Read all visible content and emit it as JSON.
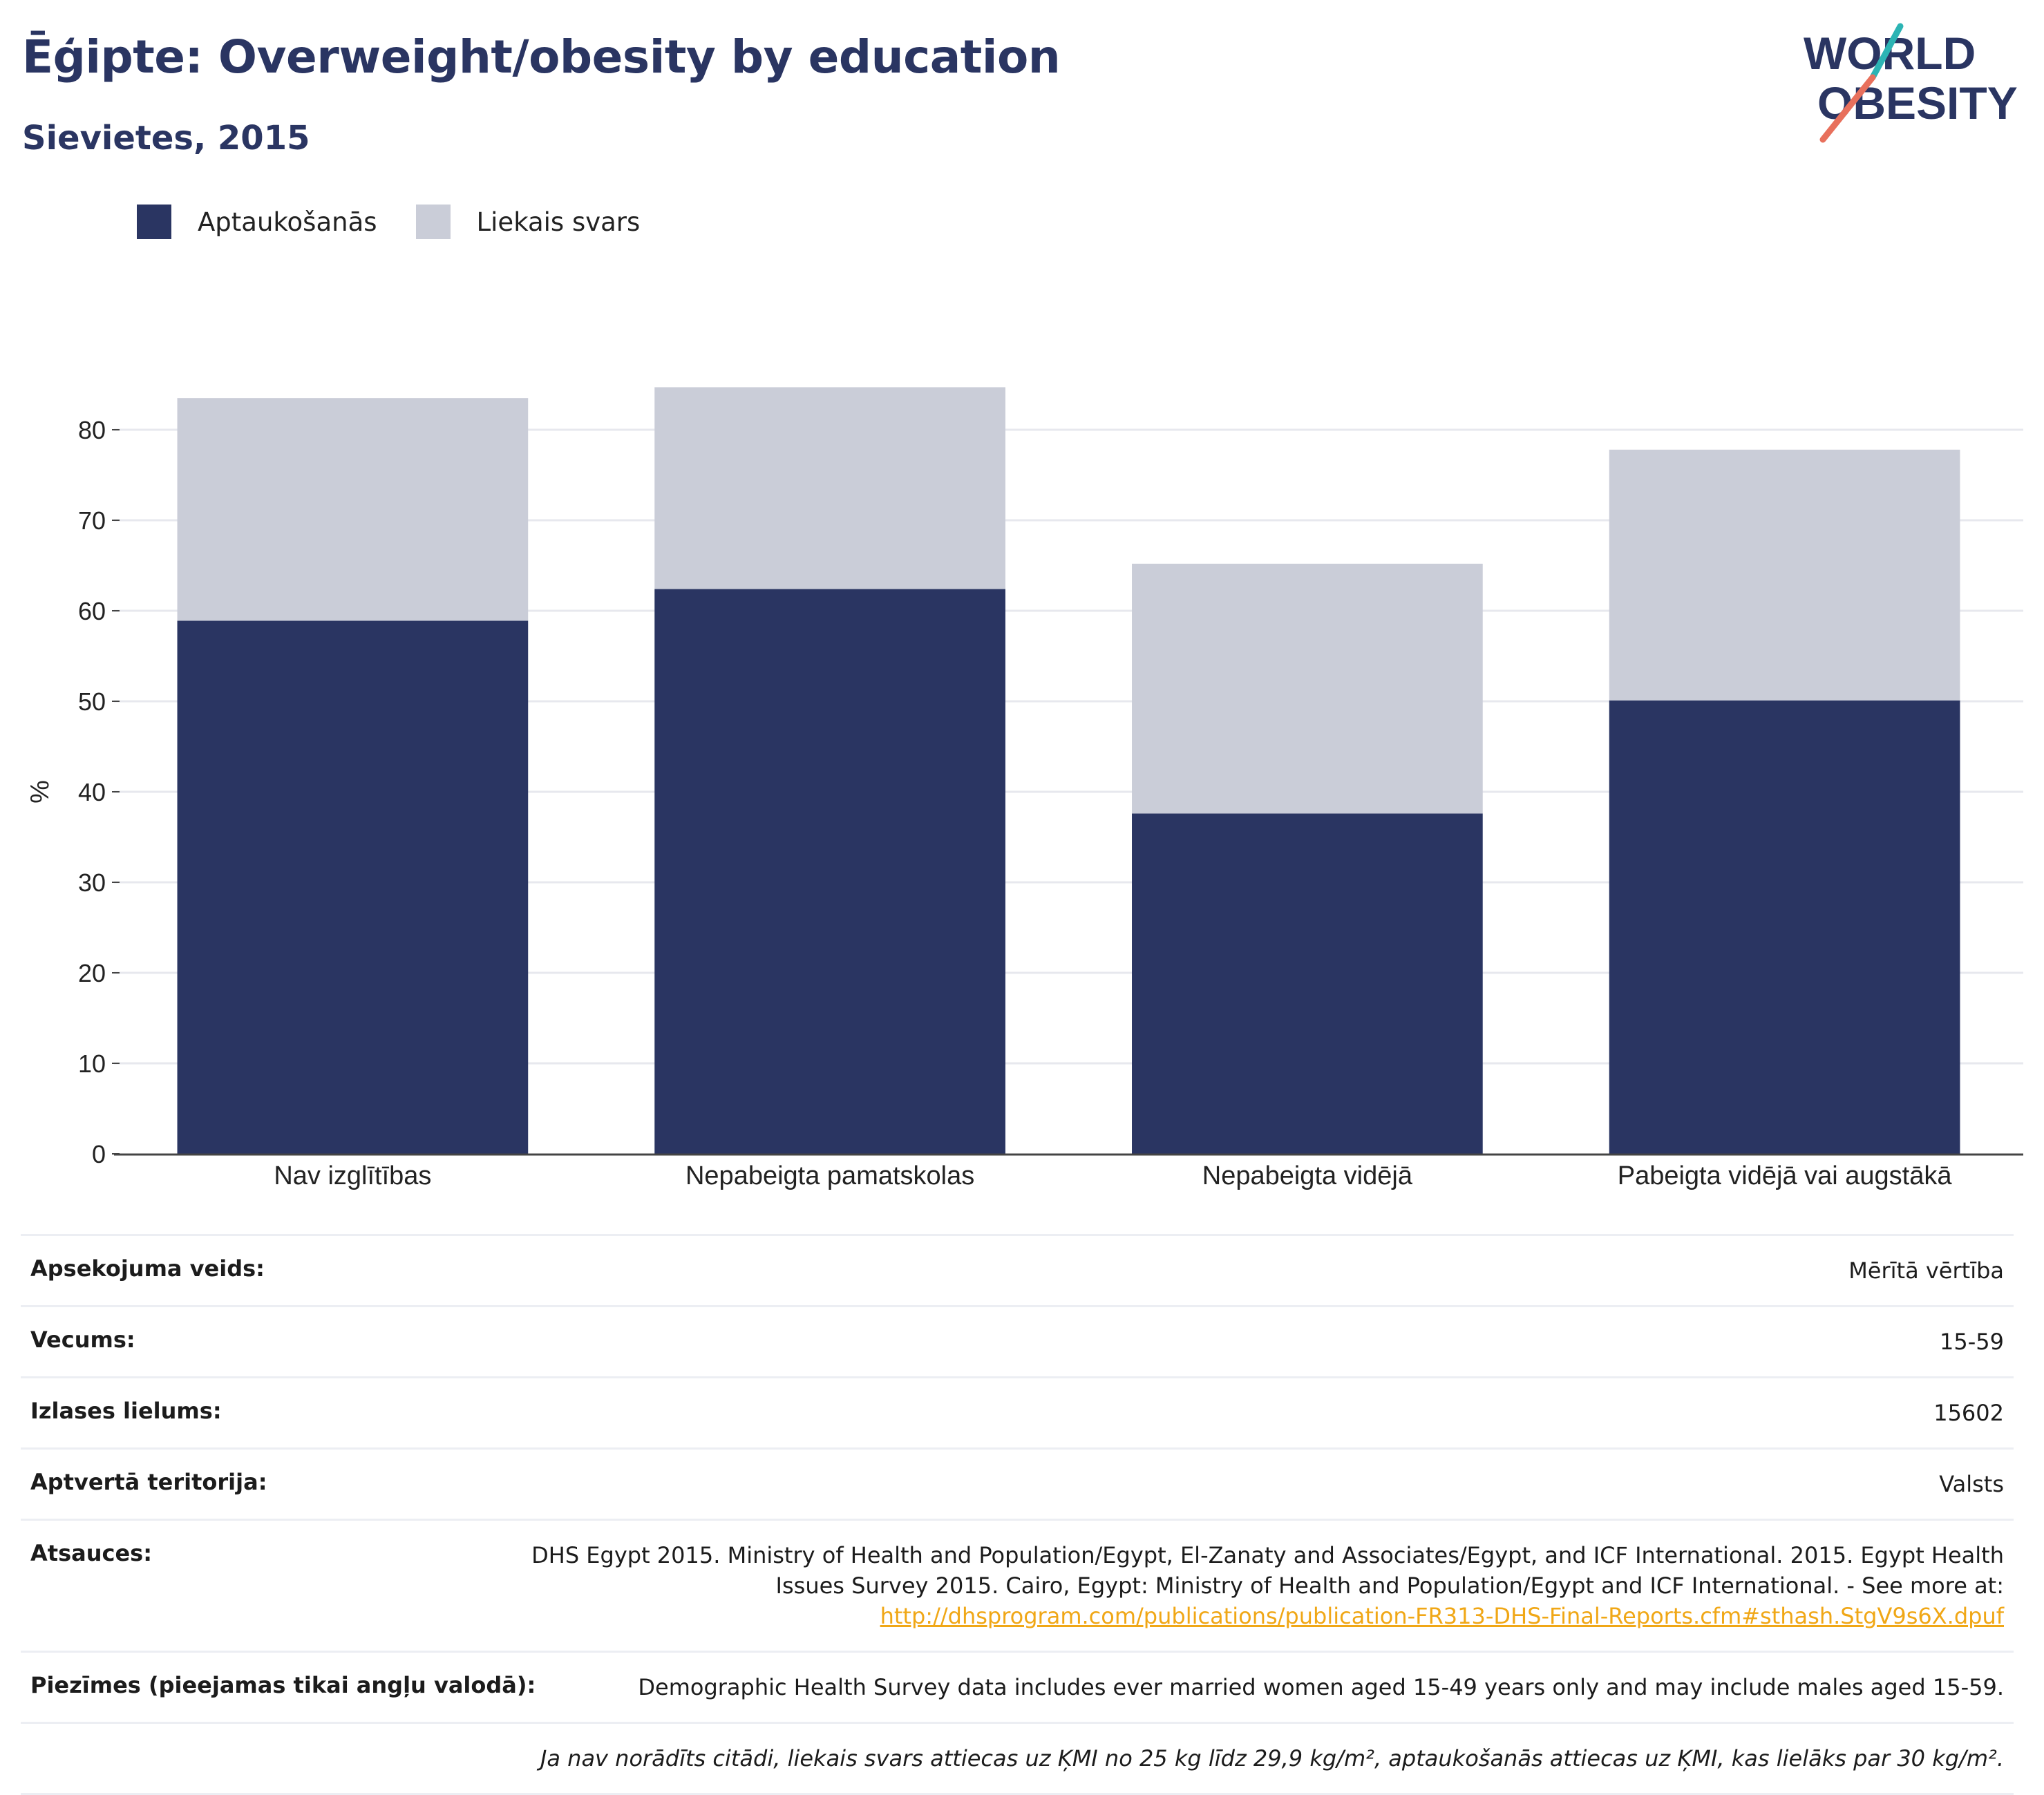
{
  "header": {
    "title": "Ēģipte: Overweight/obesity by education",
    "subtitle": "Sievietes, 2015"
  },
  "logo": {
    "line1": "WORLD",
    "line2": "OBESITY",
    "accent_teal": "#2cb4b4",
    "accent_coral": "#e8705c"
  },
  "legend": [
    {
      "label": "Aptaukošanās",
      "color": "#2a3562"
    },
    {
      "label": "Liekais svars",
      "color": "#cacdd8"
    }
  ],
  "chart_data": {
    "type": "bar",
    "stacked": true,
    "categories": [
      "Nav izglītības",
      "Nepabeigta pamatskolas",
      "Nepabeigta vidējā",
      "Pabeigta vidējā vai augstākā"
    ],
    "series": [
      {
        "name": "Aptaukošanās",
        "color": "#2a3562",
        "values": [
          58.9,
          62.4,
          37.6,
          50.1
        ]
      },
      {
        "name": "Liekais svars",
        "color": "#cacdd8",
        "values": [
          24.6,
          22.3,
          27.6,
          27.7
        ]
      }
    ],
    "ylabel": "%",
    "yticks": [
      0,
      10,
      20,
      30,
      40,
      50,
      60,
      70,
      80
    ],
    "ylim": [
      0,
      90
    ],
    "grid": true
  },
  "meta": {
    "survey_type": {
      "label": "Apsekojuma veids:",
      "value": "Mērītā vērtība"
    },
    "age": {
      "label": "Vecums:",
      "value": "15-59"
    },
    "sample": {
      "label": "Izlases lielums:",
      "value": "15602"
    },
    "coverage": {
      "label": "Aptvertā teritorija:",
      "value": "Valsts"
    },
    "references": {
      "label": "Atsauces:",
      "text": "DHS Egypt 2015. Ministry of Health and Population/Egypt, El-Zanaty and Associates/Egypt, and ICF International. 2015. Egypt Health Issues Survey 2015. Cairo, Egypt: Ministry of Health and Population/Egypt and ICF International. - See more at:",
      "link": "http://dhsprogram.com/publications/publication-FR313-DHS-Final-Reports.cfm#sthash.StgV9s6X.dpuf"
    },
    "notes": {
      "label": "Piezīmes (pieejamas tikai angļu valodā):",
      "value": "Demographic Health Survey data includes ever married women aged 15-49 years only and may include males aged 15-59."
    },
    "footnote": "Ja nav norādīts citādi, liekais svars attiecas uz ĶMI no 25 kg līdz 29,9 kg/m², aptaukošanās attiecas uz ĶMI, kas lielāks par 30 kg/m²."
  }
}
